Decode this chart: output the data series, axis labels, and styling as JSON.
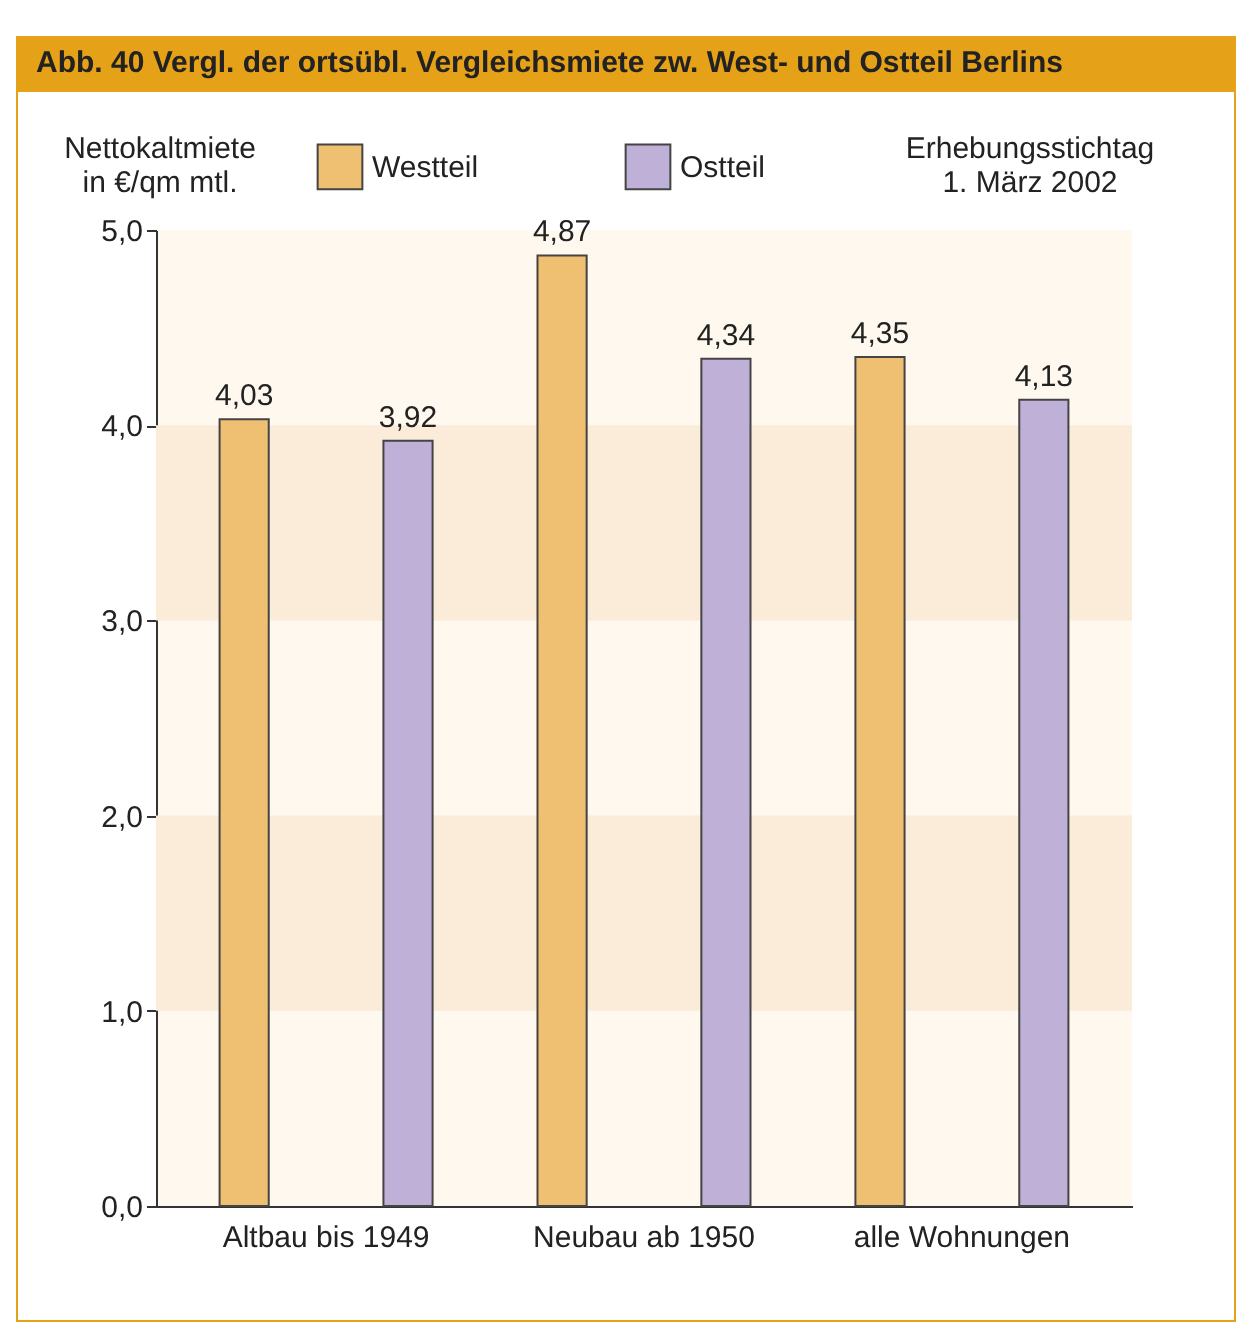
{
  "chart_data": {
    "type": "bar",
    "title": "Abb. 40  Vergl. der ortsübl. Vergleichsmiete zw. West- und Ostteil Berlins",
    "ylabel": "Nettokaltmiete in €/qm mtl.",
    "annotations": [
      "Erhebungsstichtag 1. März 2002"
    ],
    "categories": [
      "Altbau bis 1949",
      "Neubau ab 1950",
      "alle Wohnungen"
    ],
    "series": [
      {
        "name": "Westteil",
        "color": "#efc072",
        "values": [
          4.03,
          4.87,
          4.35
        ],
        "value_labels": [
          "4,03",
          "4,87",
          "4,35"
        ]
      },
      {
        "name": "Ostteil",
        "color": "#bfb0d8",
        "values": [
          3.92,
          4.34,
          4.13
        ],
        "value_labels": [
          "3,92",
          "4,34",
          "4,13"
        ]
      }
    ],
    "ylim": [
      0,
      5
    ],
    "yticks": [
      {
        "value": 0,
        "label": "0,0"
      },
      {
        "value": 1,
        "label": "1,0"
      },
      {
        "value": 2,
        "label": "2,0"
      },
      {
        "value": 3,
        "label": "3,0"
      },
      {
        "value": 4,
        "label": "4,0"
      },
      {
        "value": 5,
        "label": "5,0"
      }
    ],
    "bands": [
      {
        "axis": "y",
        "from": 1,
        "to": 2,
        "color": "#faecd8"
      },
      {
        "axis": "y",
        "from": 3,
        "to": 4,
        "color": "#faecd8"
      }
    ],
    "grid": false,
    "legend": "top"
  }
}
